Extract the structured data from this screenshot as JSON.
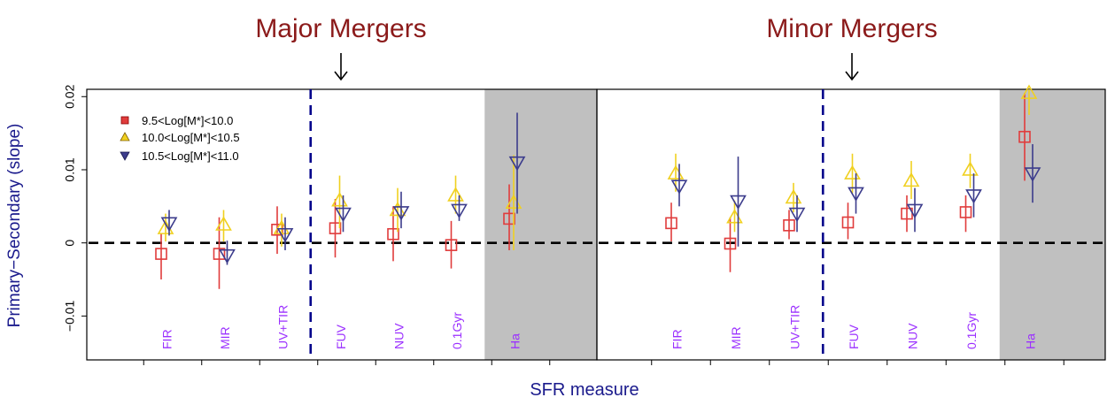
{
  "figure": {
    "ylabel": "Primary−Secondary (slope)",
    "xlabel": "SFR measure"
  },
  "colors": {
    "title": "#8b1a1a",
    "axis_label": "#1a1a8c",
    "category_label": "#9b30ff",
    "divider": "#00008b",
    "shade": "#c0c0c0",
    "series_low": "#e03c3c",
    "series_mid": "#f0d020",
    "series_high": "#3c3c8c"
  },
  "chart_data": [
    {
      "type": "scatter",
      "title": "Major Mergers",
      "categories": [
        "FIR",
        "MIR",
        "UV+TIR",
        "FUV",
        "NUV",
        "0.1Gyr",
        "Ha"
      ],
      "shaded_category": "Ha",
      "ylim": [
        -0.016,
        0.021
      ],
      "yticks": [
        -0.01,
        0,
        0.01,
        0.02
      ],
      "ytick_labels": [
        "−0.01",
        "0",
        "0.01",
        "0.02"
      ],
      "zero_line": true,
      "legend": {
        "placement": "top-left"
      },
      "series": [
        {
          "name": "9.5<Log[M*]<10.0",
          "marker": "square",
          "color": "#e03c3c",
          "values": [
            -0.0015,
            -0.0015,
            0.0018,
            0.002,
            0.0012,
            -0.0003,
            0.0033
          ],
          "error_low": [
            -0.005,
            -0.0063,
            -0.0015,
            -0.002,
            -0.0025,
            -0.0035,
            -0.001
          ],
          "error_high": [
            0.0013,
            0.0035,
            0.005,
            0.006,
            0.005,
            0.003,
            0.008
          ]
        },
        {
          "name": "10.0<Log[M*]<10.5",
          "marker": "triangle-up",
          "color": "#f0d020",
          "values": [
            0.002,
            0.0025,
            0.002,
            0.0058,
            0.0045,
            0.0065,
            0.0055
          ],
          "error_low": [
            0.0002,
            0.0002,
            -0.0005,
            0.002,
            0.0015,
            0.004,
            -0.001
          ],
          "error_high": [
            0.004,
            0.0045,
            0.004,
            0.0092,
            0.0075,
            0.0092,
            0.012
          ]
        },
        {
          "name": "10.5<Log[M*]<11.0",
          "marker": "triangle-down",
          "color": "#3c3c8c",
          "values": [
            0.0027,
            -0.0017,
            0.0012,
            0.004,
            0.0042,
            0.0045,
            0.011
          ],
          "error_low": [
            0.001,
            -0.003,
            -0.001,
            0.0015,
            0.002,
            0.003,
            0.004
          ],
          "error_high": [
            0.0045,
            0.0003,
            0.0035,
            0.0065,
            0.007,
            0.0065,
            0.0178
          ]
        }
      ]
    },
    {
      "type": "scatter",
      "title": "Minor Mergers",
      "categories": [
        "FIR",
        "MIR",
        "UV+TIR",
        "FUV",
        "NUV",
        "0.1Gyr",
        "Ha"
      ],
      "shaded_category": "Ha",
      "ylim": [
        -0.016,
        0.021
      ],
      "yticks": [
        -0.01,
        0,
        0.01,
        0.02
      ],
      "ytick_labels": [
        "−0.01",
        "0",
        "0.01",
        "0.02"
      ],
      "zero_line": true,
      "series": [
        {
          "name": "9.5<Log[M*]<10.0",
          "marker": "square",
          "color": "#e03c3c",
          "values": [
            0.0027,
            -0.0001,
            0.0024,
            0.0028,
            0.004,
            0.0042,
            0.0145
          ],
          "error_low": [
            0.0002,
            -0.004,
            0.0005,
            0.0005,
            0.0015,
            0.0015,
            0.0085
          ],
          "error_high": [
            0.0055,
            0.0035,
            0.0045,
            0.0055,
            0.0065,
            0.0065,
            0.0205
          ]
        },
        {
          "name": "10.0<Log[M*]<10.5",
          "marker": "triangle-up",
          "color": "#f0d020",
          "values": [
            0.0095,
            0.0035,
            0.0062,
            0.0095,
            0.0085,
            0.01,
            0.0205
          ],
          "error_low": [
            0.007,
            0.0015,
            0.0042,
            0.0068,
            0.006,
            0.0075,
            0.0175
          ],
          "error_high": [
            0.0122,
            0.0058,
            0.0082,
            0.0122,
            0.0112,
            0.0122,
            0.021
          ]
        },
        {
          "name": "10.5<Log[M*]<11.0",
          "marker": "triangle-down",
          "color": "#3c3c8c",
          "values": [
            0.0078,
            0.0057,
            0.004,
            0.0068,
            0.0045,
            0.0065,
            0.0095
          ],
          "error_low": [
            0.005,
            -0.0005,
            0.0015,
            0.004,
            0.0015,
            0.0035,
            0.0055
          ],
          "error_high": [
            0.0108,
            0.0118,
            0.0065,
            0.0095,
            0.0075,
            0.0095,
            0.0135
          ]
        }
      ]
    }
  ]
}
